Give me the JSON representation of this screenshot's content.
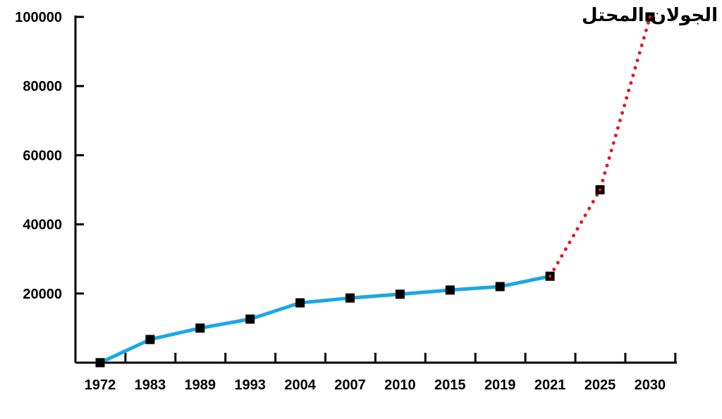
{
  "chart_data": {
    "type": "line",
    "title": "عدد المستوطنين «الاسرائيليين» في الجولان المحتل",
    "categories": [
      "1972",
      "1983",
      "1989",
      "1993",
      "2004",
      "2007",
      "2010",
      "2015",
      "2019",
      "2021",
      "2025",
      "2030"
    ],
    "series": [
      {
        "style": "solid",
        "color": "#1aa7e8",
        "values": [
          0,
          6700,
          10000,
          12600,
          17300,
          18700,
          19800,
          21000,
          22000,
          25000,
          null,
          null
        ]
      },
      {
        "style": "dotted",
        "color": "#e31b23",
        "values": [
          null,
          null,
          null,
          null,
          null,
          null,
          null,
          null,
          null,
          25000,
          50000,
          100000
        ]
      }
    ],
    "yticks": [
      20000,
      40000,
      60000,
      80000,
      100000
    ],
    "ylim": [
      0,
      100000
    ],
    "grid": false,
    "legend": "none"
  }
}
